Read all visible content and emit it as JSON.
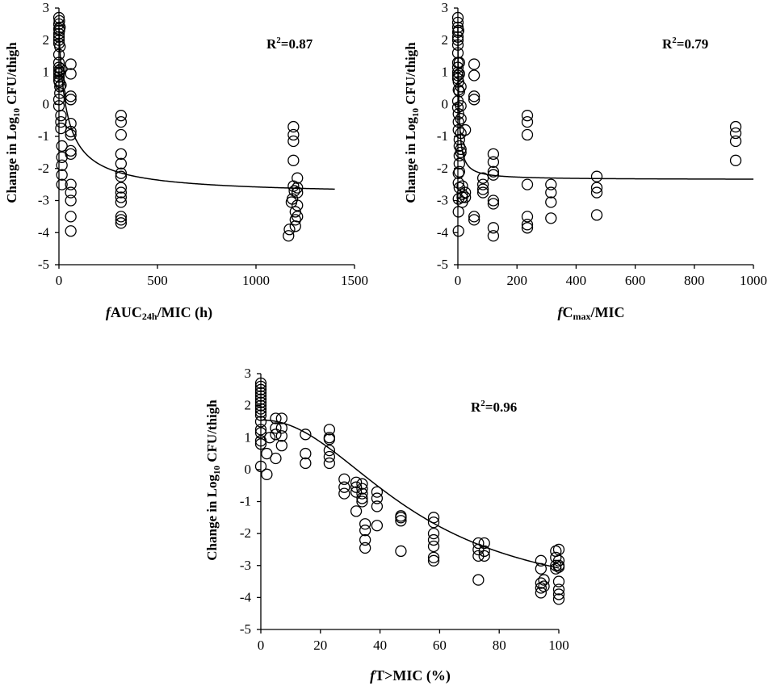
{
  "chart_data": [
    {
      "type": "scatter",
      "id": "auc",
      "ylabel_parts": [
        "Change in Log",
        "10",
        " CFU/thigh"
      ],
      "xlabel_parts": [
        "f",
        "AUC",
        "24h",
        "/MIC (h)"
      ],
      "annotation_parts": [
        "R",
        "2",
        "=0.87"
      ],
      "xlim": [
        0,
        1500
      ],
      "ylim": [
        -5,
        3
      ],
      "xticks": [
        0,
        500,
        1000,
        1500
      ],
      "yticks": [
        -5,
        -4,
        -3,
        -2,
        -1,
        0,
        1,
        2,
        3
      ],
      "tick_labels_x": [
        "0",
        "500",
        "1000",
        "1500"
      ],
      "tick_labels_y": [
        "-5",
        "-4",
        "-3",
        "-2",
        "-1",
        "0",
        "1",
        "2",
        "3"
      ],
      "fit": {
        "emax_model": {
          "e0": 2.4,
          "emax": 5.25,
          "ec50": 40,
          "hill": 0.9
        },
        "x_range": [
          0,
          1400
        ]
      },
      "points": [
        [
          0,
          2.7
        ],
        [
          0,
          2.5
        ],
        [
          0,
          2.35
        ],
        [
          0,
          2.2
        ],
        [
          0,
          2.1
        ],
        [
          0,
          2.0
        ],
        [
          0,
          1.9
        ],
        [
          0,
          1.55
        ],
        [
          0,
          1.3
        ],
        [
          0,
          1.15
        ],
        [
          0,
          1.05
        ],
        [
          0,
          0.95
        ],
        [
          0,
          0.85
        ],
        [
          0,
          0.75
        ],
        [
          0,
          0.15
        ],
        [
          0,
          -0.05
        ],
        [
          2,
          2.6
        ],
        [
          2,
          2.3
        ],
        [
          2,
          1.0
        ],
        [
          2,
          0.7
        ],
        [
          5,
          2.4
        ],
        [
          5,
          1.8
        ],
        [
          5,
          0.55
        ],
        [
          5,
          0.35
        ],
        [
          10,
          1.1
        ],
        [
          10,
          0.6
        ],
        [
          10,
          -0.35
        ],
        [
          10,
          -0.55
        ],
        [
          10,
          -0.75
        ],
        [
          15,
          -1.3
        ],
        [
          15,
          -1.65
        ],
        [
          15,
          -1.9
        ],
        [
          15,
          -2.2
        ],
        [
          15,
          -2.5
        ],
        [
          60,
          1.25
        ],
        [
          60,
          0.95
        ],
        [
          60,
          0.25
        ],
        [
          60,
          0.15
        ],
        [
          60,
          -0.6
        ],
        [
          60,
          -0.85
        ],
        [
          60,
          -0.95
        ],
        [
          60,
          -1.45
        ],
        [
          60,
          -1.55
        ],
        [
          60,
          -2.5
        ],
        [
          60,
          -2.75
        ],
        [
          60,
          -3.0
        ],
        [
          60,
          -3.5
        ],
        [
          60,
          -3.95
        ],
        [
          315,
          -0.35
        ],
        [
          315,
          -0.55
        ],
        [
          315,
          -0.95
        ],
        [
          315,
          -1.55
        ],
        [
          315,
          -1.85
        ],
        [
          315,
          -2.15
        ],
        [
          315,
          -2.25
        ],
        [
          315,
          -2.6
        ],
        [
          315,
          -2.75
        ],
        [
          315,
          -2.9
        ],
        [
          315,
          -3.05
        ],
        [
          315,
          -3.5
        ],
        [
          315,
          -3.6
        ],
        [
          315,
          -3.7
        ],
        [
          1165,
          -4.1
        ],
        [
          1170,
          -3.9
        ],
        [
          1180,
          -3.05
        ],
        [
          1185,
          -2.95
        ],
        [
          1190,
          -0.7
        ],
        [
          1190,
          -0.95
        ],
        [
          1190,
          -1.15
        ],
        [
          1190,
          -1.75
        ],
        [
          1190,
          -2.55
        ],
        [
          1195,
          -2.7
        ],
        [
          1200,
          -3.35
        ],
        [
          1200,
          -3.6
        ],
        [
          1200,
          -3.8
        ],
        [
          1210,
          -2.3
        ],
        [
          1210,
          -2.6
        ],
        [
          1210,
          -2.75
        ],
        [
          1210,
          -3.15
        ],
        [
          1210,
          -3.5
        ]
      ]
    },
    {
      "type": "scatter",
      "id": "cmax",
      "ylabel_parts": [
        "Change in Log",
        "10",
        " CFU/thigh"
      ],
      "xlabel_parts": [
        "f",
        "C",
        "max",
        "/MIC"
      ],
      "annotation_parts": [
        "R",
        "2",
        "=0.79"
      ],
      "xlim": [
        0,
        1000
      ],
      "ylim": [
        -5,
        3
      ],
      "xticks": [
        0,
        200,
        400,
        600,
        800,
        1000
      ],
      "yticks": [
        -5,
        -4,
        -3,
        -2,
        -1,
        0,
        1,
        2,
        3
      ],
      "tick_labels_x": [
        "0",
        "200",
        "400",
        "600",
        "800",
        "1000"
      ],
      "tick_labels_y": [
        "-5",
        "-4",
        "-3",
        "-2",
        "-1",
        "0",
        "1",
        "2",
        "3"
      ],
      "fit": {
        "emax_model": {
          "e0": 2.4,
          "emax": 4.75,
          "ec50": 3.5,
          "hill": 1.0
        },
        "x_range": [
          0,
          1000
        ]
      },
      "points": [
        [
          0,
          2.7
        ],
        [
          0,
          2.55
        ],
        [
          0,
          2.4
        ],
        [
          0,
          2.25
        ],
        [
          0,
          2.1
        ],
        [
          0,
          2.0
        ],
        [
          0,
          1.85
        ],
        [
          0,
          1.6
        ],
        [
          0,
          1.3
        ],
        [
          0,
          1.15
        ],
        [
          0,
          1.0
        ],
        [
          0,
          0.9
        ],
        [
          0,
          0.8
        ],
        [
          0,
          0.1
        ],
        [
          0,
          -0.1
        ],
        [
          2,
          2.3
        ],
        [
          2,
          0.7
        ],
        [
          2,
          0.45
        ],
        [
          2,
          -0.3
        ],
        [
          2,
          -0.55
        ],
        [
          2,
          -0.8
        ],
        [
          2,
          -2.15
        ],
        [
          2,
          -2.45
        ],
        [
          2,
          -2.95
        ],
        [
          2,
          -3.35
        ],
        [
          2,
          -3.95
        ],
        [
          5,
          1.3
        ],
        [
          5,
          0.95
        ],
        [
          5,
          0.4
        ],
        [
          5,
          -1.1
        ],
        [
          5,
          -1.3
        ],
        [
          5,
          -1.6
        ],
        [
          5,
          -1.85
        ],
        [
          5,
          -2.1
        ],
        [
          5,
          -2.6
        ],
        [
          10,
          0.55
        ],
        [
          10,
          -0.05
        ],
        [
          10,
          -0.45
        ],
        [
          10,
          -0.9
        ],
        [
          10,
          -1.4
        ],
        [
          10,
          -1.5
        ],
        [
          15,
          -2.55
        ],
        [
          15,
          -2.8
        ],
        [
          15,
          -2.9
        ],
        [
          15,
          -3.05
        ],
        [
          25,
          -0.8
        ],
        [
          25,
          -2.75
        ],
        [
          25,
          -2.9
        ],
        [
          55,
          1.25
        ],
        [
          55,
          0.9
        ],
        [
          55,
          0.25
        ],
        [
          55,
          0.15
        ],
        [
          55,
          -3.5
        ],
        [
          55,
          -3.6
        ],
        [
          85,
          -2.3
        ],
        [
          85,
          -2.5
        ],
        [
          85,
          -2.65
        ],
        [
          85,
          -2.75
        ],
        [
          120,
          -1.55
        ],
        [
          120,
          -1.8
        ],
        [
          120,
          -2.1
        ],
        [
          120,
          -2.2
        ],
        [
          120,
          -3.0
        ],
        [
          120,
          -3.1
        ],
        [
          120,
          -3.85
        ],
        [
          120,
          -4.1
        ],
        [
          235,
          -0.35
        ],
        [
          235,
          -0.55
        ],
        [
          235,
          -0.95
        ],
        [
          235,
          -2.5
        ],
        [
          235,
          -3.5
        ],
        [
          235,
          -3.75
        ],
        [
          235,
          -3.85
        ],
        [
          315,
          -2.5
        ],
        [
          315,
          -2.75
        ],
        [
          315,
          -3.05
        ],
        [
          315,
          -3.55
        ],
        [
          470,
          -2.25
        ],
        [
          470,
          -2.6
        ],
        [
          470,
          -2.75
        ],
        [
          470,
          -3.45
        ],
        [
          940,
          -0.7
        ],
        [
          940,
          -0.9
        ],
        [
          940,
          -1.15
        ],
        [
          940,
          -1.75
        ]
      ]
    },
    {
      "type": "scatter",
      "id": "tmic",
      "ylabel_parts": [
        "Change in Log",
        "10",
        " CFU/thigh"
      ],
      "xlabel_parts": [
        "f",
        "T>MIC (%)"
      ],
      "annotation_parts": [
        "R",
        "2",
        "=0.96"
      ],
      "xlim": [
        0,
        100
      ],
      "ylim": [
        -5,
        3
      ],
      "xticks": [
        0,
        20,
        40,
        60,
        80,
        100
      ],
      "yticks": [
        -5,
        -4,
        -3,
        -2,
        -1,
        0,
        1,
        2,
        3
      ],
      "tick_labels_x": [
        "0",
        "20",
        "40",
        "60",
        "80",
        "100"
      ],
      "tick_labels_y": [
        "-5",
        "-4",
        "-3",
        "-2",
        "-1",
        "0",
        "1",
        "2",
        "3"
      ],
      "fit": {
        "emax_model": {
          "e0": 1.55,
          "emax": 5.8,
          "ec50": 52,
          "hill": 2.1
        },
        "x_range": [
          0,
          100
        ]
      },
      "points": [
        [
          0,
          2.7
        ],
        [
          0,
          2.6
        ],
        [
          0,
          2.5
        ],
        [
          0,
          2.4
        ],
        [
          0,
          2.3
        ],
        [
          0,
          2.2
        ],
        [
          0,
          2.1
        ],
        [
          0,
          2.0
        ],
        [
          0,
          1.9
        ],
        [
          0,
          1.8
        ],
        [
          0,
          1.7
        ],
        [
          0,
          1.5
        ],
        [
          0,
          1.25
        ],
        [
          0,
          1.15
        ],
        [
          0,
          0.9
        ],
        [
          0,
          0.8
        ],
        [
          0,
          0.1
        ],
        [
          2,
          0.5
        ],
        [
          2,
          -0.15
        ],
        [
          3,
          1.0
        ],
        [
          5,
          1.6
        ],
        [
          5,
          1.3
        ],
        [
          5,
          1.1
        ],
        [
          5,
          0.35
        ],
        [
          7,
          1.6
        ],
        [
          7,
          1.3
        ],
        [
          7,
          1.05
        ],
        [
          7,
          0.75
        ],
        [
          15,
          1.1
        ],
        [
          15,
          0.5
        ],
        [
          15,
          0.2
        ],
        [
          23,
          1.25
        ],
        [
          23,
          1.0
        ],
        [
          23,
          0.95
        ],
        [
          23,
          0.6
        ],
        [
          23,
          0.4
        ],
        [
          23,
          0.2
        ],
        [
          28,
          -0.3
        ],
        [
          28,
          -0.55
        ],
        [
          28,
          -0.75
        ],
        [
          32,
          -0.4
        ],
        [
          32,
          -0.55
        ],
        [
          32,
          -0.7
        ],
        [
          32,
          -1.3
        ],
        [
          34,
          -0.45
        ],
        [
          34,
          -0.6
        ],
        [
          34,
          -0.75
        ],
        [
          34,
          -0.9
        ],
        [
          34,
          -1.0
        ],
        [
          35,
          -1.7
        ],
        [
          35,
          -1.9
        ],
        [
          35,
          -2.2
        ],
        [
          35,
          -2.45
        ],
        [
          39,
          -0.7
        ],
        [
          39,
          -0.9
        ],
        [
          39,
          -1.15
        ],
        [
          39,
          -1.75
        ],
        [
          47,
          -1.45
        ],
        [
          47,
          -1.5
        ],
        [
          47,
          -1.6
        ],
        [
          47,
          -2.55
        ],
        [
          58,
          -1.5
        ],
        [
          58,
          -1.65
        ],
        [
          58,
          -2.0
        ],
        [
          58,
          -2.2
        ],
        [
          58,
          -2.4
        ],
        [
          58,
          -2.75
        ],
        [
          58,
          -2.85
        ],
        [
          73,
          -2.3
        ],
        [
          73,
          -2.5
        ],
        [
          73,
          -2.7
        ],
        [
          73,
          -3.45
        ],
        [
          75,
          -2.3
        ],
        [
          75,
          -2.55
        ],
        [
          75,
          -2.7
        ],
        [
          94,
          -2.85
        ],
        [
          94,
          -3.1
        ],
        [
          94,
          -3.55
        ],
        [
          94,
          -3.7
        ],
        [
          94,
          -3.85
        ],
        [
          95,
          -3.45
        ],
        [
          95,
          -3.65
        ],
        [
          99,
          -2.55
        ],
        [
          99,
          -2.75
        ],
        [
          99,
          -3.0
        ],
        [
          99,
          -3.1
        ],
        [
          100,
          -2.5
        ],
        [
          100,
          -2.85
        ],
        [
          100,
          -3.0
        ],
        [
          100,
          -3.05
        ],
        [
          100,
          -3.5
        ],
        [
          100,
          -3.75
        ],
        [
          100,
          -3.9
        ],
        [
          100,
          -4.05
        ]
      ]
    }
  ]
}
